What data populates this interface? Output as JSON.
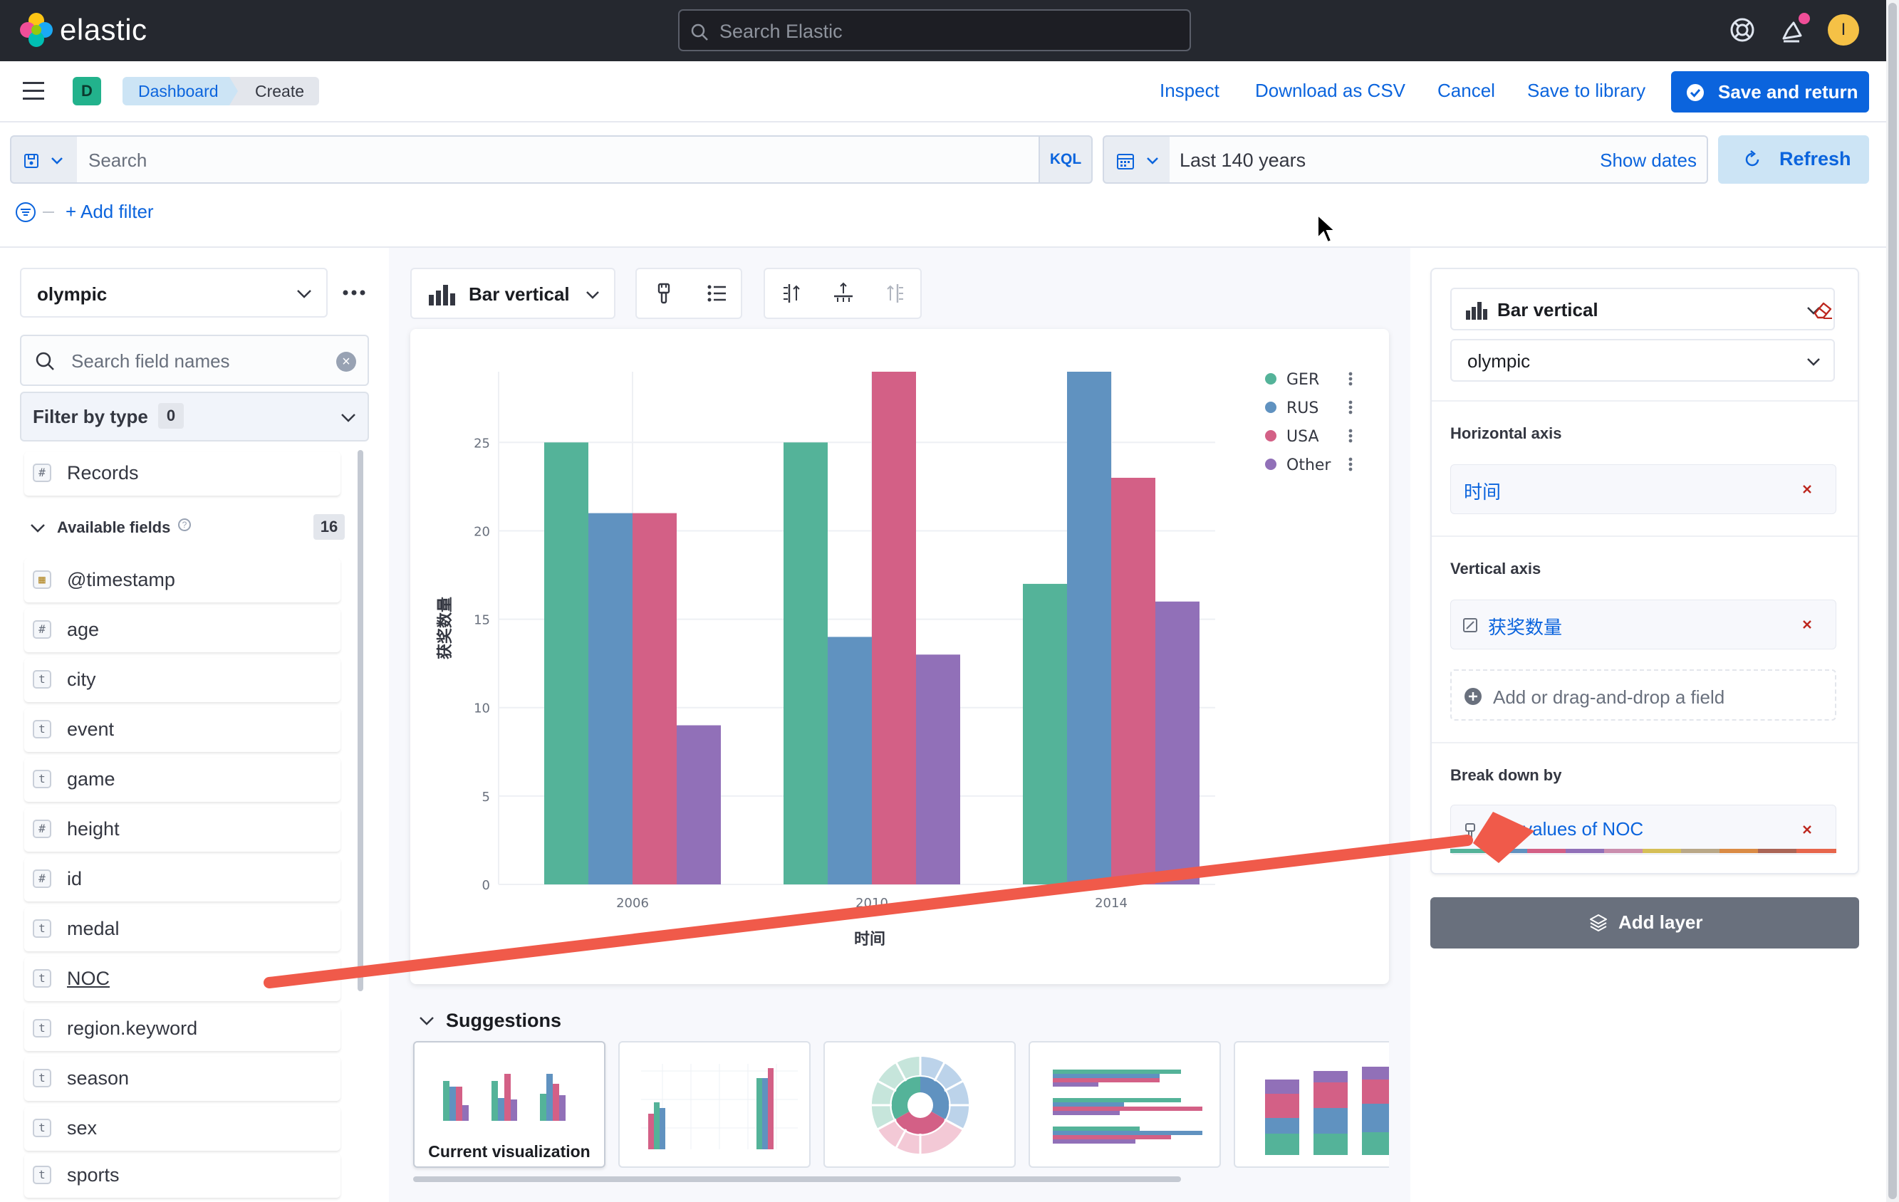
{
  "header": {
    "brand": "elastic",
    "search_placeholder": "Search Elastic",
    "user_initial": "I"
  },
  "appbar": {
    "space_initial": "D",
    "breadcrumbs": [
      "Dashboard",
      "Create"
    ],
    "actions": {
      "inspect": "Inspect",
      "download_csv": "Download as CSV",
      "cancel": "Cancel",
      "save_to_library": "Save to library",
      "save_and_return": "Save and return"
    }
  },
  "querybar": {
    "search_placeholder": "Search",
    "language": "KQL",
    "time_range": "Last 140 years",
    "show_dates": "Show dates",
    "refresh": "Refresh",
    "add_filter": "+ Add filter"
  },
  "left_panel": {
    "data_view": "olympic",
    "field_search_placeholder": "Search field names",
    "filter_by_type": "Filter by type",
    "filter_count": "0",
    "records_field": {
      "type": "#",
      "name": "Records"
    },
    "available_label": "Available fields",
    "available_count": "16",
    "fields": [
      {
        "type": "cal",
        "name": "@timestamp"
      },
      {
        "type": "#",
        "name": "age"
      },
      {
        "type": "t",
        "name": "city"
      },
      {
        "type": "t",
        "name": "event"
      },
      {
        "type": "t",
        "name": "game"
      },
      {
        "type": "#",
        "name": "height"
      },
      {
        "type": "#",
        "name": "id"
      },
      {
        "type": "t",
        "name": "medal"
      },
      {
        "type": "t",
        "name": "NOC"
      },
      {
        "type": "t",
        "name": "region.keyword"
      },
      {
        "type": "t",
        "name": "season"
      },
      {
        "type": "t",
        "name": "sex"
      },
      {
        "type": "t",
        "name": "sports"
      }
    ]
  },
  "workspace": {
    "chart_type_label": "Bar vertical",
    "suggestions_title": "Suggestions",
    "current_visualization": "Current visualization"
  },
  "right_panel": {
    "chart_type": "Bar vertical",
    "data_view": "olympic",
    "horizontal_axis_label": "Horizontal axis",
    "horizontal_axis_value": "时间",
    "vertical_axis_label": "Vertical axis",
    "vertical_axis_value": "获奖数量",
    "add_field": "Add or drag-and-drop a field",
    "break_down_label": "Break down by",
    "break_down_value": "Top values of NOC",
    "add_layer": "Add layer"
  },
  "colors": {
    "accent": "#0b64dd",
    "header_bg": "#25282f",
    "GER": "#54b399",
    "RUS": "#6092c0",
    "USA": "#d36086",
    "Other": "#9170b8",
    "arrow": "#f05a4a"
  },
  "chart_data": {
    "type": "bar",
    "categories": [
      "2006",
      "2010",
      "2014"
    ],
    "xlabel": "时间",
    "ylabel": "获奖数量",
    "ylim": [
      0,
      29
    ],
    "yticks": [
      0,
      5,
      10,
      15,
      20,
      25
    ],
    "legend_position": "top-right",
    "series": [
      {
        "name": "GER",
        "values": [
          25,
          25,
          17
        ]
      },
      {
        "name": "RUS",
        "values": [
          21,
          14,
          29
        ]
      },
      {
        "name": "USA",
        "values": [
          21,
          29,
          23
        ]
      },
      {
        "name": "Other",
        "values": [
          9,
          13,
          16
        ]
      }
    ]
  }
}
